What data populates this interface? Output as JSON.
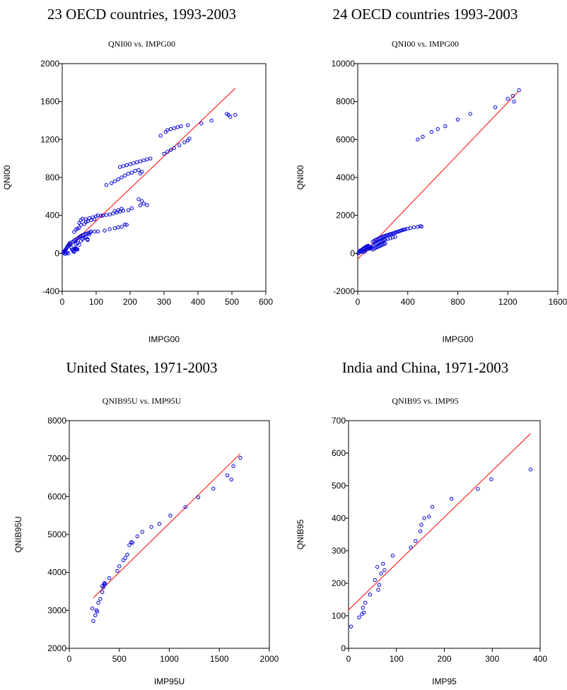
{
  "chart_data": [
    {
      "type": "scatter",
      "title": "23 OECD countries, 1993-2003",
      "subtitle": "QNI00 vs. IMPG00",
      "xlabel": "IMPG00",
      "ylabel": "QNI00",
      "xlim": [
        0,
        600
      ],
      "ylim": [
        -400,
        2000
      ],
      "xticks": [
        0,
        100,
        200,
        300,
        400,
        500,
        600
      ],
      "yticks": [
        -400,
        0,
        400,
        800,
        1200,
        1600,
        2000
      ],
      "xtick_labels": [
        "0",
        "100",
        "200",
        "300",
        "400",
        "500",
        "600"
      ],
      "ytick_labels": [
        "-400",
        "0",
        "400",
        "800",
        "1200",
        "1600",
        "2000"
      ],
      "point_color": "#0000dd",
      "line_color": "#ff0000",
      "fit_line": [
        [
          0,
          0
        ],
        [
          510,
          1740
        ]
      ],
      "points": [
        [
          3,
          5
        ],
        [
          5,
          15
        ],
        [
          7,
          25
        ],
        [
          9,
          35
        ],
        [
          11,
          45
        ],
        [
          13,
          55
        ],
        [
          15,
          70
        ],
        [
          17,
          80
        ],
        [
          19,
          90
        ],
        [
          21,
          100
        ],
        [
          23,
          110
        ],
        [
          25,
          95
        ],
        [
          27,
          60
        ],
        [
          29,
          40
        ],
        [
          31,
          30
        ],
        [
          33,
          20
        ],
        [
          35,
          15
        ],
        [
          37,
          45
        ],
        [
          39,
          55
        ],
        [
          41,
          50
        ],
        [
          43,
          45
        ],
        [
          45,
          40
        ],
        [
          14,
          10
        ],
        [
          18,
          0
        ],
        [
          8,
          -5
        ],
        [
          12,
          -2
        ],
        [
          30,
          120
        ],
        [
          34,
          130
        ],
        [
          38,
          140
        ],
        [
          42,
          150
        ],
        [
          46,
          160
        ],
        [
          50,
          170
        ],
        [
          54,
          180
        ],
        [
          58,
          190
        ],
        [
          62,
          195
        ],
        [
          66,
          200
        ],
        [
          70,
          205
        ],
        [
          74,
          210
        ],
        [
          78,
          215
        ],
        [
          82,
          220
        ],
        [
          40,
          100
        ],
        [
          45,
          110
        ],
        [
          50,
          90
        ],
        [
          55,
          130
        ],
        [
          60,
          150
        ],
        [
          65,
          160
        ],
        [
          70,
          170
        ],
        [
          75,
          140
        ],
        [
          75,
          150
        ],
        [
          80,
          200
        ],
        [
          85,
          230
        ],
        [
          95,
          230
        ],
        [
          105,
          230
        ],
        [
          125,
          240
        ],
        [
          140,
          255
        ],
        [
          155,
          265
        ],
        [
          165,
          275
        ],
        [
          175,
          280
        ],
        [
          185,
          305
        ],
        [
          190,
          300
        ],
        [
          120,
          400
        ],
        [
          130,
          405
        ],
        [
          140,
          410
        ],
        [
          150,
          420
        ],
        [
          160,
          430
        ],
        [
          170,
          440
        ],
        [
          180,
          450
        ],
        [
          175,
          470
        ],
        [
          165,
          455
        ],
        [
          155,
          445
        ],
        [
          195,
          455
        ],
        [
          205,
          475
        ],
        [
          230,
          505
        ],
        [
          240,
          525
        ],
        [
          250,
          510
        ],
        [
          235,
          550
        ],
        [
          225,
          570
        ],
        [
          55,
          350
        ],
        [
          60,
          365
        ],
        [
          70,
          360
        ],
        [
          80,
          370
        ],
        [
          90,
          380
        ],
        [
          100,
          390
        ],
        [
          105,
          400
        ],
        [
          115,
          395
        ],
        [
          70,
          330
        ],
        [
          75,
          340
        ],
        [
          85,
          350
        ],
        [
          95,
          360
        ],
        [
          50,
          320
        ],
        [
          55,
          300
        ],
        [
          65,
          310
        ],
        [
          40,
          250
        ],
        [
          45,
          260
        ],
        [
          50,
          270
        ],
        [
          35,
          225
        ],
        [
          130,
          720
        ],
        [
          145,
          740
        ],
        [
          155,
          760
        ],
        [
          165,
          780
        ],
        [
          175,
          800
        ],
        [
          185,
          820
        ],
        [
          195,
          840
        ],
        [
          205,
          850
        ],
        [
          215,
          870
        ],
        [
          225,
          880
        ],
        [
          230,
          840
        ],
        [
          235,
          860
        ],
        [
          170,
          910
        ],
        [
          180,
          920
        ],
        [
          190,
          930
        ],
        [
          200,
          940
        ],
        [
          210,
          950
        ],
        [
          220,
          960
        ],
        [
          230,
          970
        ],
        [
          240,
          980
        ],
        [
          250,
          990
        ],
        [
          260,
          1000
        ],
        [
          290,
          1240
        ],
        [
          305,
          1280
        ],
        [
          310,
          1300
        ],
        [
          320,
          1310
        ],
        [
          330,
          1320
        ],
        [
          340,
          1330
        ],
        [
          350,
          1340
        ],
        [
          370,
          1350
        ],
        [
          300,
          1050
        ],
        [
          310,
          1070
        ],
        [
          320,
          1090
        ],
        [
          330,
          1110
        ],
        [
          345,
          1140
        ],
        [
          360,
          1170
        ],
        [
          370,
          1190
        ],
        [
          375,
          1210
        ],
        [
          410,
          1370
        ],
        [
          440,
          1400
        ],
        [
          485,
          1470
        ],
        [
          490,
          1460
        ],
        [
          495,
          1440
        ],
        [
          510,
          1460
        ]
      ]
    },
    {
      "type": "scatter",
      "title": "24 OECD countries 1993-2003",
      "subtitle": "QNI00 vs. IMPG00",
      "xlabel": "IMPG00",
      "ylabel": "QNI00",
      "xlim": [
        0,
        1600
      ],
      "ylim": [
        -2000,
        10000
      ],
      "xticks": [
        0,
        400,
        800,
        1200,
        1600
      ],
      "yticks": [
        -2000,
        0,
        2000,
        4000,
        6000,
        8000,
        10000
      ],
      "xtick_labels": [
        "0",
        "400",
        "800",
        "1200",
        "1600"
      ],
      "ytick_labels": [
        "-2000",
        "0",
        "2000",
        "4000",
        "6000",
        "8000",
        "10000"
      ],
      "point_color": "#0000dd",
      "line_color": "#ff0000",
      "fit_line": [
        [
          0,
          -300
        ],
        [
          1280,
          8500
        ]
      ],
      "points": [
        [
          5,
          0
        ],
        [
          10,
          50
        ],
        [
          15,
          100
        ],
        [
          20,
          150
        ],
        [
          25,
          80
        ],
        [
          30,
          120
        ],
        [
          35,
          200
        ],
        [
          40,
          180
        ],
        [
          45,
          250
        ],
        [
          50,
          220
        ],
        [
          55,
          300
        ],
        [
          60,
          270
        ],
        [
          65,
          350
        ],
        [
          70,
          320
        ],
        [
          75,
          380
        ],
        [
          80,
          330
        ],
        [
          85,
          400
        ],
        [
          90,
          360
        ],
        [
          95,
          300
        ],
        [
          100,
          250
        ],
        [
          105,
          280
        ],
        [
          110,
          310
        ],
        [
          40,
          100
        ],
        [
          50,
          60
        ],
        [
          60,
          140
        ],
        [
          70,
          200
        ],
        [
          80,
          230
        ],
        [
          90,
          260
        ],
        [
          100,
          290
        ],
        [
          110,
          320
        ],
        [
          120,
          200
        ],
        [
          130,
          250
        ],
        [
          140,
          280
        ],
        [
          150,
          310
        ],
        [
          160,
          340
        ],
        [
          170,
          370
        ],
        [
          180,
          400
        ],
        [
          190,
          430
        ],
        [
          200,
          460
        ],
        [
          210,
          490
        ],
        [
          220,
          520
        ],
        [
          120,
          600
        ],
        [
          130,
          650
        ],
        [
          140,
          700
        ],
        [
          150,
          720
        ],
        [
          160,
          750
        ],
        [
          170,
          800
        ],
        [
          180,
          820
        ],
        [
          190,
          850
        ],
        [
          200,
          880
        ],
        [
          210,
          900
        ],
        [
          220,
          920
        ],
        [
          230,
          950
        ],
        [
          240,
          970
        ],
        [
          250,
          990
        ],
        [
          260,
          1010
        ],
        [
          270,
          1030
        ],
        [
          280,
          1050
        ],
        [
          290,
          1070
        ],
        [
          300,
          1100
        ],
        [
          310,
          1120
        ],
        [
          320,
          1140
        ],
        [
          330,
          1160
        ],
        [
          340,
          1190
        ],
        [
          350,
          1210
        ],
        [
          360,
          1230
        ],
        [
          370,
          1250
        ],
        [
          380,
          1270
        ],
        [
          400,
          1300
        ],
        [
          420,
          1330
        ],
        [
          450,
          1370
        ],
        [
          480,
          1400
        ],
        [
          500,
          1430
        ],
        [
          510,
          1420
        ],
        [
          130,
          400
        ],
        [
          140,
          450
        ],
        [
          150,
          500
        ],
        [
          160,
          550
        ],
        [
          170,
          600
        ],
        [
          180,
          620
        ],
        [
          190,
          650
        ],
        [
          200,
          680
        ],
        [
          210,
          700
        ],
        [
          220,
          720
        ],
        [
          240,
          760
        ],
        [
          260,
          800
        ],
        [
          280,
          840
        ],
        [
          300,
          870
        ],
        [
          480,
          6000
        ],
        [
          520,
          6150
        ],
        [
          590,
          6400
        ],
        [
          640,
          6550
        ],
        [
          700,
          6700
        ],
        [
          800,
          7050
        ],
        [
          900,
          7350
        ],
        [
          1100,
          7700
        ],
        [
          1200,
          8150
        ],
        [
          1240,
          8300
        ],
        [
          1290,
          8600
        ],
        [
          1250,
          8000
        ]
      ]
    },
    {
      "type": "scatter",
      "title": "United States, 1971-2003",
      "subtitle": "QNIB95U vs. IMP95U",
      "xlabel": "IMP95U",
      "ylabel": "QNIB95U",
      "xlim": [
        0,
        2000
      ],
      "ylim": [
        2000,
        8000
      ],
      "xticks": [
        0,
        500,
        1000,
        1500,
        2000
      ],
      "yticks": [
        2000,
        3000,
        4000,
        5000,
        6000,
        7000,
        8000
      ],
      "xtick_labels": [
        "0",
        "500",
        "1000",
        "1500",
        "2000"
      ],
      "ytick_labels": [
        "2000",
        "3000",
        "4000",
        "5000",
        "6000",
        "7000",
        "8000"
      ],
      "point_color": "#0000dd",
      "line_color": "#ff0000",
      "fit_line": [
        [
          240,
          3330
        ],
        [
          1710,
          7130
        ]
      ],
      "points": [
        [
          240,
          2720
        ],
        [
          230,
          3050
        ],
        [
          260,
          2870
        ],
        [
          270,
          3000
        ],
        [
          280,
          2970
        ],
        [
          290,
          3200
        ],
        [
          310,
          3300
        ],
        [
          330,
          3480
        ],
        [
          340,
          3600
        ],
        [
          350,
          3720
        ],
        [
          360,
          3700
        ],
        [
          330,
          3640
        ],
        [
          350,
          3680
        ],
        [
          400,
          3850
        ],
        [
          480,
          4040
        ],
        [
          500,
          4160
        ],
        [
          540,
          4320
        ],
        [
          560,
          4380
        ],
        [
          580,
          4470
        ],
        [
          600,
          4720
        ],
        [
          620,
          4800
        ],
        [
          630,
          4780
        ],
        [
          680,
          4950
        ],
        [
          730,
          5070
        ],
        [
          820,
          5200
        ],
        [
          900,
          5280
        ],
        [
          1010,
          5500
        ],
        [
          1160,
          5720
        ],
        [
          1290,
          5980
        ],
        [
          1440,
          6210
        ],
        [
          1580,
          6560
        ],
        [
          1620,
          6450
        ],
        [
          1640,
          6800
        ],
        [
          1710,
          7020
        ]
      ]
    },
    {
      "type": "scatter",
      "title": "India and China, 1971-2003",
      "subtitle": "QNIB95 vs. IMP95",
      "xlabel": "IMP95",
      "ylabel": "QNIB95",
      "xlim": [
        0,
        400
      ],
      "ylim": [
        0,
        700
      ],
      "xticks": [
        0,
        100,
        200,
        300,
        400
      ],
      "yticks": [
        0,
        100,
        200,
        300,
        400,
        500,
        600,
        700
      ],
      "xtick_labels": [
        "0",
        "100",
        "200",
        "300",
        "400"
      ],
      "ytick_labels": [
        "0",
        "100",
        "200",
        "300",
        "400",
        "500",
        "600",
        "700"
      ],
      "point_color": "#0000dd",
      "line_color": "#ff0000",
      "fit_line": [
        [
          0,
          118
        ],
        [
          380,
          660
        ]
      ],
      "points": [
        [
          5,
          67
        ],
        [
          22,
          95
        ],
        [
          28,
          105
        ],
        [
          32,
          110
        ],
        [
          30,
          125
        ],
        [
          35,
          140
        ],
        [
          45,
          165
        ],
        [
          55,
          210
        ],
        [
          60,
          250
        ],
        [
          62,
          180
        ],
        [
          64,
          195
        ],
        [
          68,
          230
        ],
        [
          72,
          260
        ],
        [
          75,
          240
        ],
        [
          92,
          285
        ],
        [
          130,
          310
        ],
        [
          140,
          330
        ],
        [
          150,
          360
        ],
        [
          152,
          380
        ],
        [
          158,
          400
        ],
        [
          168,
          405
        ],
        [
          175,
          435
        ],
        [
          215,
          460
        ],
        [
          270,
          490
        ],
        [
          298,
          520
        ],
        [
          380,
          550
        ]
      ]
    }
  ]
}
